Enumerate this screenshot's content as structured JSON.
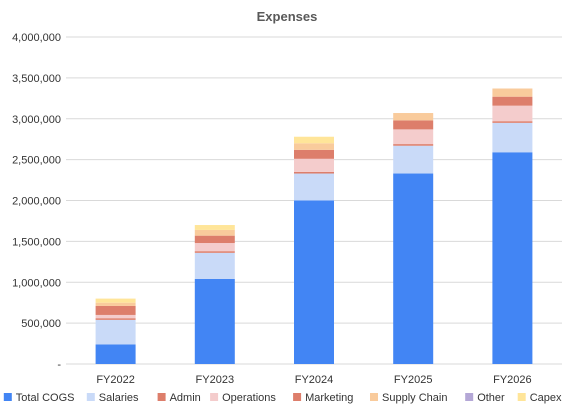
{
  "chart_data": {
    "type": "bar",
    "stacked": true,
    "title": "Expenses",
    "xlabel": "",
    "ylabel": "",
    "categories": [
      "FY2022",
      "FY2023",
      "FY2024",
      "FY2025",
      "FY2026"
    ],
    "ylim": [
      0,
      4000000
    ],
    "yticks": [
      0,
      500000,
      1000000,
      1500000,
      2000000,
      2500000,
      3000000,
      3500000,
      4000000
    ],
    "ytick_labels": [
      "-",
      "500,000",
      "1,000,000",
      "1,500,000",
      "2,000,000",
      "2,500,000",
      "3,000,000",
      "3,500,000",
      "4,000,000"
    ],
    "grid": true,
    "legend_position": "bottom",
    "series": [
      {
        "name": "Total COGS",
        "color": "#4285f4",
        "values": [
          240000,
          1040000,
          2000000,
          2330000,
          2590000
        ]
      },
      {
        "name": "Salaries",
        "color": "#c9daf8",
        "values": [
          300000,
          320000,
          330000,
          340000,
          360000
        ]
      },
      {
        "name": "Admin",
        "color": "#dd7e6b",
        "values": [
          20000,
          20000,
          20000,
          20000,
          20000
        ]
      },
      {
        "name": "Operations",
        "color": "#f4cccc",
        "values": [
          40000,
          100000,
          160000,
          180000,
          190000
        ]
      },
      {
        "name": "Marketing",
        "color": "#dd7e6b",
        "values": [
          110000,
          90000,
          110000,
          110000,
          110000
        ]
      },
      {
        "name": "Supply Chain",
        "color": "#f9cb9c",
        "values": [
          40000,
          70000,
          80000,
          90000,
          100000
        ]
      },
      {
        "name": "Other",
        "color": "#b4a7d6",
        "values": [
          0,
          0,
          0,
          0,
          0
        ]
      },
      {
        "name": "Capex",
        "color": "#ffe599",
        "values": [
          50000,
          60000,
          80000,
          0,
          0
        ]
      }
    ]
  }
}
